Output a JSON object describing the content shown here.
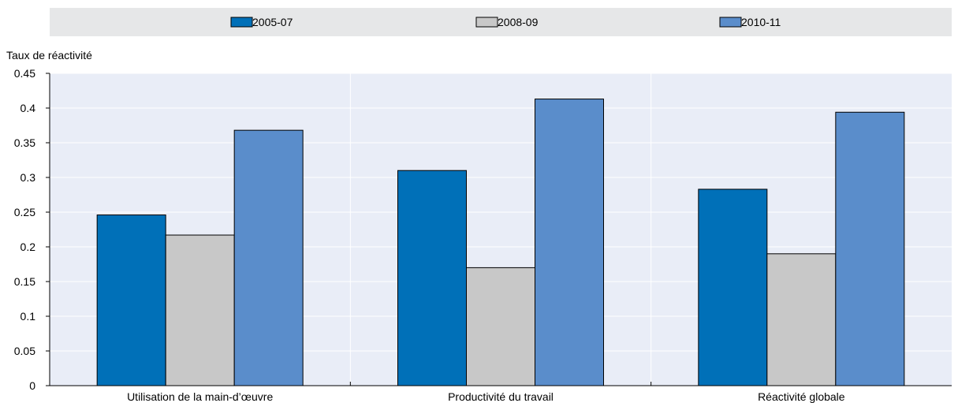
{
  "chart_data": {
    "type": "bar",
    "ylabel": "Taux de réactivité",
    "ylim": [
      0,
      0.45
    ],
    "yticks": [
      "0",
      "0.05",
      "0.1",
      "0.15",
      "0.2",
      "0.25",
      "0.3",
      "0.35",
      "0.4",
      "0.45"
    ],
    "categories": [
      "Utilisation de la main-d’œuvre",
      "Productivité du travail",
      "Réactivité globale"
    ],
    "series": [
      {
        "name": "2005-07",
        "color": "#0070B8",
        "values": [
          0.246,
          0.31,
          0.283
        ]
      },
      {
        "name": "2008-09",
        "color": "#C8C8C8",
        "values": [
          0.217,
          0.17,
          0.19
        ]
      },
      {
        "name": "2010-11",
        "color": "#5A8DCB",
        "values": [
          0.368,
          0.413,
          0.394
        ]
      }
    ],
    "grid": true,
    "legend_position": "top",
    "colors": {
      "plot_background": "#E9EDF7",
      "legend_background": "#E6E7E8",
      "grid": "#FFFFFF",
      "axis": "#000000"
    }
  }
}
